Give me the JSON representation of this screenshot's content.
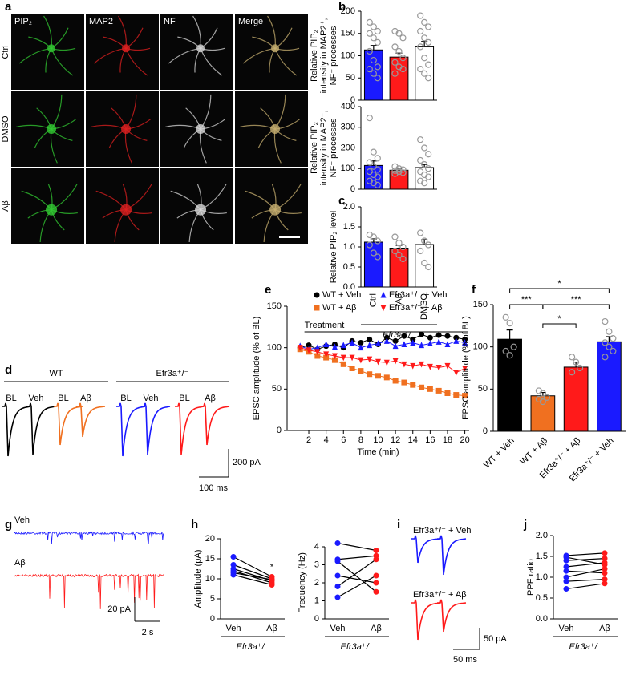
{
  "panel_labels": [
    "a",
    "b",
    "c",
    "d",
    "e",
    "f",
    "g",
    "h",
    "i",
    "j"
  ],
  "micrographs": {
    "columns": [
      "PIP₂",
      "MAP2",
      "NF",
      "Merge"
    ],
    "rows": [
      "Ctrl",
      "DMSO",
      "Aβ"
    ]
  },
  "traces_d": {
    "groups": [
      {
        "name": "WT",
        "labels": [
          "BL",
          "Veh",
          "BL",
          "Aβ"
        ]
      },
      {
        "name": "Efr3a⁺/⁻",
        "labels": [
          "BL",
          "Veh",
          "BL",
          "Aβ"
        ]
      }
    ],
    "scale_y": "200 pA",
    "scale_x": "100 ms"
  },
  "traces_g": {
    "labels": [
      "Veh",
      "Aβ"
    ],
    "scale_y": "20 pA",
    "scale_x": "2 s"
  },
  "traces_i": {
    "labels": [
      "Efr3a⁺/⁻ + Veh",
      "Efr3a⁺/⁻ + Aβ"
    ],
    "scale_y": "50 pA",
    "scale_x": "50 ms"
  },
  "chart_data": [
    {
      "type": "bar",
      "ylabel": [
        "Relative PIP₂",
        "intensity in MAP2⁺,",
        "NF⁺ processes"
      ],
      "ylim": [
        0,
        200
      ],
      "yticks": [
        0,
        50,
        100,
        150,
        200
      ],
      "values": [
        113,
        97,
        120
      ],
      "errors": [
        10,
        9,
        12
      ],
      "colors": [
        "#1a1aff",
        "#ff1a1a",
        "#ffffff"
      ],
      "points": [
        [
          175,
          165,
          155,
          150,
          140,
          130,
          110,
          90,
          75,
          70,
          60,
          50
        ],
        [
          155,
          150,
          140,
          120,
          110,
          95,
          85,
          75,
          70,
          60
        ],
        [
          190,
          175,
          165,
          155,
          140,
          130,
          120,
          95,
          80,
          70,
          60,
          50
        ]
      ]
    },
    {
      "type": "bar",
      "ylabel": [
        "Relative PIP₂",
        "intensity in MAP2⁺,",
        "NF⁻ processes"
      ],
      "ylim": [
        0,
        400
      ],
      "yticks": [
        0,
        100,
        200,
        300,
        400
      ],
      "values": [
        115,
        92,
        105
      ],
      "errors": [
        22,
        8,
        15
      ],
      "colors": [
        "#1a1aff",
        "#ff1a1a",
        "#ffffff"
      ],
      "points": [
        [
          345,
          180,
          150,
          130,
          110,
          95,
          85,
          70,
          60,
          40,
          30,
          20
        ],
        [
          110,
          100,
          95,
          90,
          85,
          80,
          75
        ],
        [
          240,
          200,
          170,
          140,
          120,
          100,
          85,
          70,
          60,
          40,
          30
        ]
      ]
    },
    {
      "type": "bar",
      "ylabel": "Relative PIP₂ level",
      "ylim": [
        0,
        2
      ],
      "yticks": [
        {
          "value": 0,
          "label": "0.0"
        },
        0.5,
        {
          "value": 1,
          "label": "1.0"
        },
        1.5,
        {
          "value": 2,
          "label": "2.0"
        }
      ],
      "categories": [
        "Ctrl",
        "Aβ",
        "DMSO"
      ],
      "values": [
        1.12,
        0.97,
        1.06
      ],
      "errors": [
        0.08,
        0.07,
        0.12
      ],
      "colors": [
        "#1a1aff",
        "#ff1a1a",
        "#ffffff"
      ],
      "points": [
        [
          1.3,
          1.25,
          1.15,
          1.05,
          0.85,
          0.75
        ],
        [
          1.25,
          1.1,
          1.0,
          0.9,
          0.8,
          0.7
        ],
        [
          1.35,
          1.15,
          1.05,
          0.9,
          0.6,
          0.5
        ]
      ],
      "footnote": "Efr3a⁺/⁻"
    },
    {
      "type": "line",
      "ylabel": "EPSC amplitude (% of BL)",
      "xlabel": "Time (min)",
      "annotation": "Treatment",
      "xlim": [
        -0.5,
        20.5
      ],
      "xticks": [
        2,
        4,
        6,
        8,
        10,
        12,
        14,
        16,
        18,
        20
      ],
      "ylim": [
        0,
        150
      ],
      "yticks": [
        0,
        50,
        100,
        150
      ],
      "x": [
        1,
        2,
        3,
        4,
        5,
        6,
        7,
        8,
        9,
        10,
        11,
        12,
        13,
        14,
        15,
        16,
        17,
        18,
        19,
        20
      ],
      "series": [
        {
          "name": "WT + Veh",
          "color": "#000000",
          "marker": "circle",
          "values": [
            100,
            103,
            98,
            102,
            104,
            100,
            108,
            106,
            110,
            104,
            112,
            108,
            114,
            110,
            116,
            112,
            115,
            114,
            112,
            110
          ]
        },
        {
          "name": "Efr3a⁺/⁻ + Veh",
          "color": "#1a1aff",
          "marker": "triangle-up",
          "values": [
            102,
            98,
            100,
            104,
            101,
            103,
            106,
            100,
            103,
            105,
            108,
            102,
            104,
            106,
            103,
            105,
            107,
            104,
            108,
            106
          ]
        },
        {
          "name": "WT + Aβ",
          "color": "#f07020",
          "marker": "square",
          "values": [
            98,
            95,
            90,
            88,
            85,
            80,
            75,
            72,
            68,
            66,
            64,
            60,
            58,
            55,
            52,
            50,
            48,
            45,
            43,
            42
          ]
        },
        {
          "name": "Efr3a⁺/⁻ + Aβ",
          "color": "#ff1a1a",
          "marker": "triangle-down",
          "values": [
            100,
            97,
            95,
            92,
            90,
            88,
            88,
            85,
            86,
            83,
            82,
            84,
            80,
            78,
            80,
            77,
            76,
            78,
            70,
            75
          ]
        }
      ]
    },
    {
      "type": "bar",
      "ylabel": "EPSC amplitude (% of BL)",
      "ylim": [
        0,
        150
      ],
      "yticks": [
        0,
        50,
        100,
        150
      ],
      "categories": [
        "WT + Veh",
        "WT + Aβ",
        "Efr3a⁺/⁻ + Aβ",
        "Efr3a⁺/⁻ + Veh"
      ],
      "values": [
        109,
        42,
        76,
        106
      ],
      "errors": [
        11,
        4,
        6,
        6
      ],
      "colors": [
        "#000000",
        "#f07020",
        "#ff1a1a",
        "#1a1aff"
      ],
      "points": [
        [
          135,
          128,
          100,
          95,
          90
        ],
        [
          48,
          45,
          40,
          38,
          35
        ],
        [
          88,
          82,
          75,
          70
        ],
        [
          130,
          118,
          110,
          105,
          100,
          95,
          88
        ]
      ],
      "comparisons": [
        {
          "groups": [
            "WT + Veh",
            "Efr3a⁺/⁻ + Veh"
          ],
          "label": "*"
        },
        {
          "groups": [
            "WT + Veh",
            "WT + Aβ"
          ],
          "label": "***"
        },
        {
          "groups": [
            "WT + Aβ",
            "Efr3a⁺/⁻ + Veh"
          ],
          "label": "***"
        },
        {
          "groups": [
            "WT + Aβ",
            "Efr3a⁺/⁻ + Aβ"
          ],
          "label": "*"
        }
      ]
    },
    {
      "type": "paired",
      "ylabel": "Amplitude (pA)",
      "ylim": [
        0,
        20
      ],
      "yticks": [
        0,
        5,
        10,
        15,
        20
      ],
      "categories": [
        "Veh",
        "Aβ"
      ],
      "colors": [
        "#1a1aff",
        "#ff1a1a"
      ],
      "pairs": [
        [
          15.5,
          10.5
        ],
        [
          13.5,
          10
        ],
        [
          12.5,
          9.5
        ],
        [
          12,
          9
        ],
        [
          11.5,
          9.8
        ],
        [
          11,
          8.5
        ]
      ],
      "annotation": "*",
      "footnote": "Efr3a⁺/⁻"
    },
    {
      "type": "paired",
      "ylabel": "Frequency (Hz)",
      "ylim": [
        0,
        4
      ],
      "yticks": [
        0,
        1,
        2,
        3,
        4
      ],
      "categories": [
        "Veh",
        "Aβ"
      ],
      "colors": [
        "#1a1aff",
        "#ff1a1a"
      ],
      "pairs": [
        [
          4.2,
          3.8
        ],
        [
          3.3,
          3.5
        ],
        [
          3.2,
          1.5
        ],
        [
          2.4,
          2.0
        ],
        [
          1.8,
          3.3
        ],
        [
          1.2,
          2.4
        ]
      ],
      "footnote": "Efr3a⁺/⁻"
    },
    {
      "type": "paired",
      "ylabel": "PPF ratio",
      "ylim": [
        0,
        2
      ],
      "yticks": [
        {
          "value": 0,
          "label": "0.0"
        },
        0.5,
        {
          "value": 1,
          "label": "1.0"
        },
        1.5,
        {
          "value": 2,
          "label": "2.0"
        }
      ],
      "categories": [
        "Veh",
        "Aβ"
      ],
      "colors": [
        "#1a1aff",
        "#ff1a1a"
      ],
      "pairs": [
        [
          1.52,
          1.58
        ],
        [
          1.48,
          1.3
        ],
        [
          1.4,
          1.45
        ],
        [
          1.25,
          1.35
        ],
        [
          1.15,
          1.1
        ],
        [
          1.0,
          1.2
        ],
        [
          0.9,
          0.95
        ],
        [
          0.72,
          0.85
        ]
      ],
      "footnote": "Efr3a⁺/⁻"
    }
  ]
}
